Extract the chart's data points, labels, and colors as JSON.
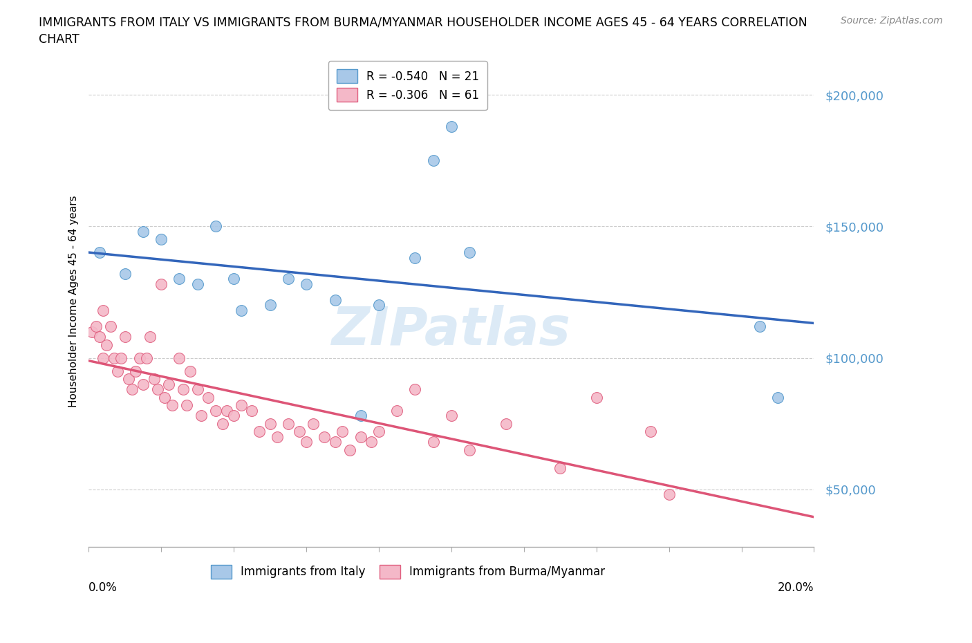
{
  "title_line1": "IMMIGRANTS FROM ITALY VS IMMIGRANTS FROM BURMA/MYANMAR HOUSEHOLDER INCOME AGES 45 - 64 YEARS CORRELATION",
  "title_line2": "CHART",
  "source": "Source: ZipAtlas.com",
  "ylabel": "Householder Income Ages 45 - 64 years",
  "y_ticks": [
    50000,
    100000,
    150000,
    200000
  ],
  "y_tick_labels": [
    "$50,000",
    "$100,000",
    "$150,000",
    "$200,000"
  ],
  "xlim": [
    0.0,
    0.2
  ],
  "ylim": [
    28000,
    215000
  ],
  "watermark": "ZIPatlas",
  "italy_color": "#a8c8e8",
  "burma_color": "#f4b8c8",
  "italy_edge_color": "#5599cc",
  "burma_edge_color": "#e06080",
  "italy_line_color": "#3366bb",
  "burma_line_color": "#dd5577",
  "italy_R": -0.54,
  "italy_N": 21,
  "burma_R": -0.306,
  "burma_N": 61,
  "italy_scatter_x": [
    0.003,
    0.01,
    0.015,
    0.02,
    0.025,
    0.03,
    0.035,
    0.04,
    0.042,
    0.05,
    0.055,
    0.06,
    0.068,
    0.075,
    0.08,
    0.09,
    0.095,
    0.1,
    0.105,
    0.185,
    0.19
  ],
  "italy_scatter_y": [
    140000,
    132000,
    148000,
    145000,
    130000,
    128000,
    150000,
    130000,
    118000,
    120000,
    130000,
    128000,
    122000,
    78000,
    120000,
    138000,
    175000,
    188000,
    140000,
    112000,
    85000
  ],
  "burma_scatter_x": [
    0.001,
    0.002,
    0.003,
    0.004,
    0.004,
    0.005,
    0.006,
    0.007,
    0.008,
    0.009,
    0.01,
    0.011,
    0.012,
    0.013,
    0.014,
    0.015,
    0.016,
    0.017,
    0.018,
    0.019,
    0.02,
    0.021,
    0.022,
    0.023,
    0.025,
    0.026,
    0.027,
    0.028,
    0.03,
    0.031,
    0.033,
    0.035,
    0.037,
    0.038,
    0.04,
    0.042,
    0.045,
    0.047,
    0.05,
    0.052,
    0.055,
    0.058,
    0.06,
    0.062,
    0.065,
    0.068,
    0.07,
    0.072,
    0.075,
    0.078,
    0.08,
    0.085,
    0.09,
    0.095,
    0.1,
    0.105,
    0.115,
    0.13,
    0.14,
    0.155,
    0.16
  ],
  "burma_scatter_y": [
    110000,
    112000,
    108000,
    100000,
    118000,
    105000,
    112000,
    100000,
    95000,
    100000,
    108000,
    92000,
    88000,
    95000,
    100000,
    90000,
    100000,
    108000,
    92000,
    88000,
    128000,
    85000,
    90000,
    82000,
    100000,
    88000,
    82000,
    95000,
    88000,
    78000,
    85000,
    80000,
    75000,
    80000,
    78000,
    82000,
    80000,
    72000,
    75000,
    70000,
    75000,
    72000,
    68000,
    75000,
    70000,
    68000,
    72000,
    65000,
    70000,
    68000,
    72000,
    80000,
    88000,
    68000,
    78000,
    65000,
    75000,
    58000,
    85000,
    72000,
    48000
  ],
  "background_color": "#ffffff",
  "grid_color": "#cccccc",
  "legend_italy_label": "R = -0.540   N = 21",
  "legend_burma_label": "R = -0.306   N = 61"
}
